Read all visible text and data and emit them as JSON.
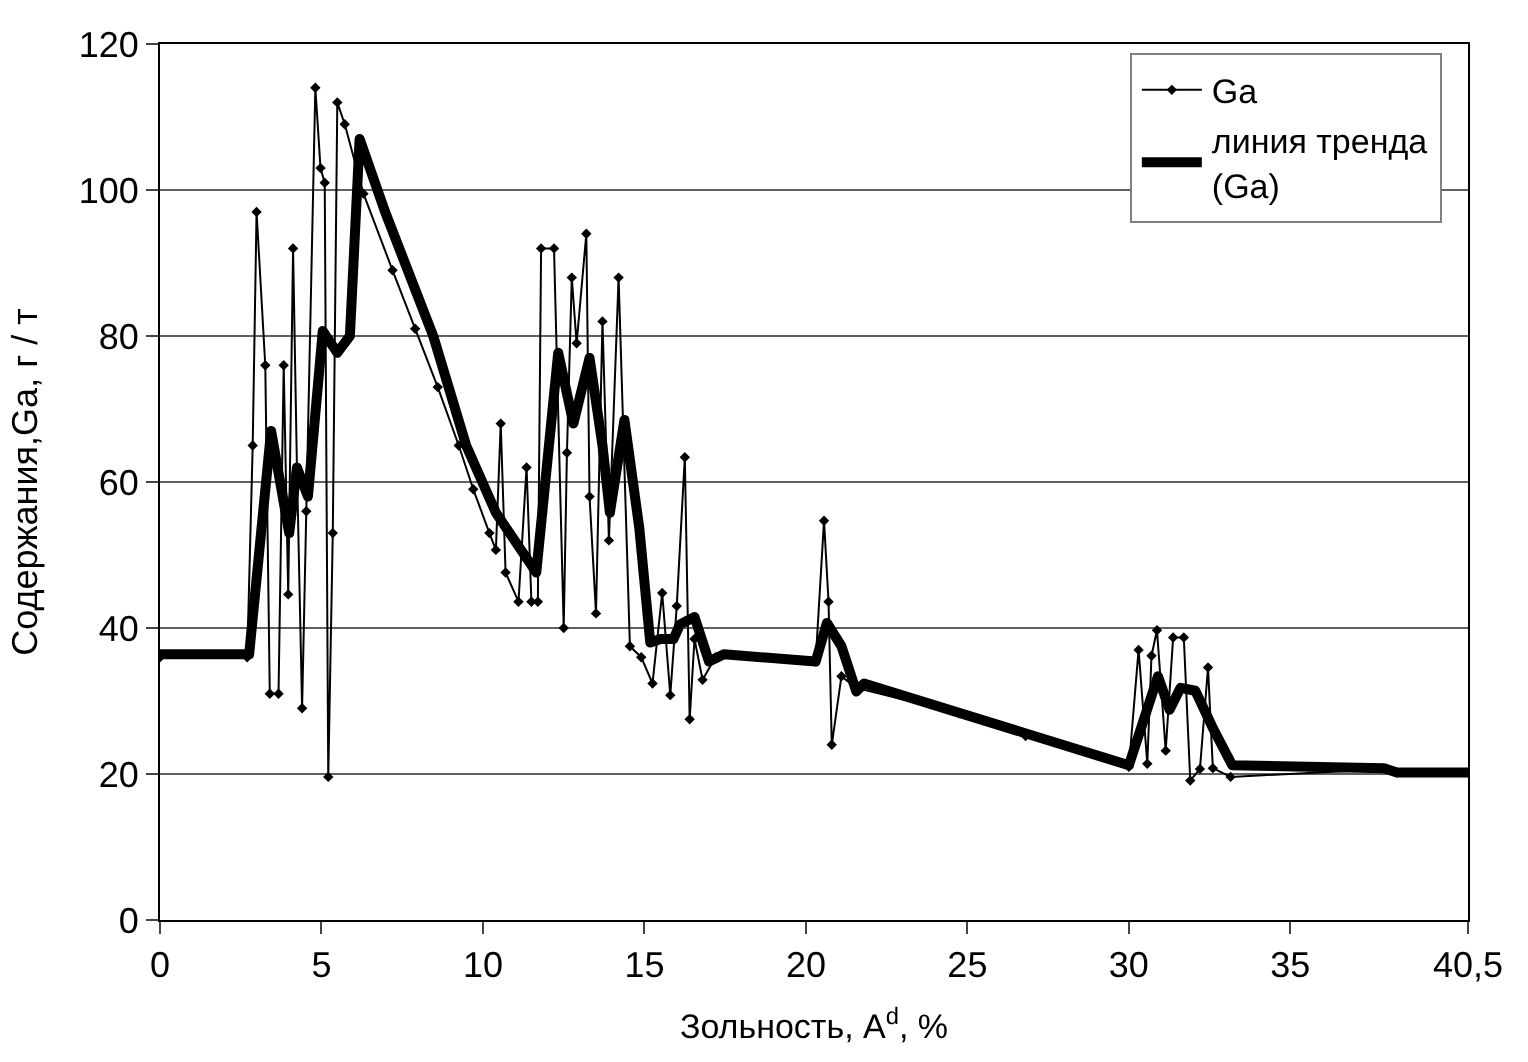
{
  "chart_data": {
    "type": "line",
    "xlabel": "Зольность, A$^{d}$, %",
    "ylabel": "Содержания,Ga, г / т",
    "xlim": [
      0,
      40.5
    ],
    "xticks": [
      0,
      5,
      10,
      15,
      20,
      25,
      30,
      35,
      {
        "value": 40.5,
        "label": "40,5"
      }
    ],
    "ylim": [
      0,
      120
    ],
    "yticks": [
      0,
      20,
      40,
      60,
      80,
      100,
      120
    ],
    "grid": "y",
    "legend": "top right",
    "series": [
      {
        "name": "Ga",
        "color": "#000000",
        "marker": "diamond",
        "line_style": "solid",
        "x": [
          0,
          2.7,
          2.87,
          2.99,
          3.26,
          3.4,
          3.67,
          3.83,
          3.97,
          4.12,
          4.24,
          4.4,
          4.53,
          4.81,
          4.97,
          5.1,
          5.21,
          5.35,
          5.49,
          5.72,
          6.3,
          7.2,
          7.9,
          8.6,
          9.25,
          9.7,
          10.2,
          10.4,
          10.55,
          10.7,
          11.1,
          11.35,
          11.5,
          11.7,
          11.8,
          12.2,
          12.5,
          12.6,
          12.75,
          12.9,
          13.2,
          13.3,
          13.5,
          13.7,
          13.9,
          14.2,
          14.55,
          14.9,
          15.25,
          15.55,
          15.8,
          16.0,
          16.25,
          16.4,
          16.55,
          16.8,
          17.2,
          20.3,
          20.56,
          20.7,
          20.8,
          21.1,
          21.55,
          24.76,
          26.8,
          30.0,
          30.3,
          30.57,
          30.7,
          30.87,
          31.14,
          31.37,
          31.7,
          31.9,
          32.2,
          32.45,
          32.6,
          33.15,
          37.98,
          38.3,
          40.5
        ],
        "values": [
          36,
          36,
          65,
          97,
          76,
          31,
          31,
          76,
          44.6,
          92,
          62,
          29,
          56,
          114,
          103,
          101,
          19.6,
          53,
          112,
          109,
          99.5,
          89,
          81,
          73,
          65,
          59,
          53,
          50.7,
          68,
          47.6,
          43.6,
          62,
          43.6,
          43.6,
          92,
          92,
          40,
          64,
          88,
          79,
          94,
          58,
          42,
          82,
          52,
          88,
          37.5,
          36,
          32.4,
          44.8,
          30.8,
          43,
          63.4,
          27.5,
          38.5,
          32.9,
          36,
          35.4,
          54.7,
          43.6,
          24,
          33.4,
          31.8,
          28.3,
          25.2,
          21,
          37,
          21.4,
          36.2,
          39.7,
          23.2,
          38.7,
          38.7,
          19.1,
          20.7,
          34.6,
          20.8,
          19.6,
          20.7,
          20.2,
          20.2
        ]
      },
      {
        "name": "линия тренда (Ga)",
        "color": "#000000",
        "marker": "none",
        "line_style": "solid",
        "x": [
          0,
          2.76,
          3.44,
          4.0,
          4.24,
          4.58,
          5.04,
          5.49,
          5.88,
          6.18,
          6.97,
          8.46,
          9.48,
          10.4,
          11.65,
          12.33,
          12.8,
          13.3,
          13.7,
          13.93,
          14.38,
          14.84,
          15.18,
          15.5,
          15.9,
          16.1,
          16.55,
          17.0,
          17.46,
          20.3,
          20.65,
          21.1,
          21.56,
          21.8,
          30.0,
          30.9,
          31.26,
          31.6,
          32.06,
          32.6,
          33.2,
          37.9,
          38.3,
          40.5
        ],
        "values": [
          36.4,
          36.4,
          67,
          53,
          62,
          58,
          80.7,
          77.7,
          80,
          107,
          97,
          80,
          65,
          55.8,
          47.6,
          77.7,
          68,
          77,
          65,
          55.8,
          68.5,
          53.7,
          38,
          38.5,
          38.5,
          40.5,
          41.5,
          35.4,
          36.4,
          35.4,
          40.7,
          37.5,
          31.3,
          32.4,
          21.2,
          33.4,
          28.8,
          31.8,
          31.4,
          26.3,
          21.2,
          20.8,
          20.2,
          20.2
        ]
      }
    ]
  }
}
